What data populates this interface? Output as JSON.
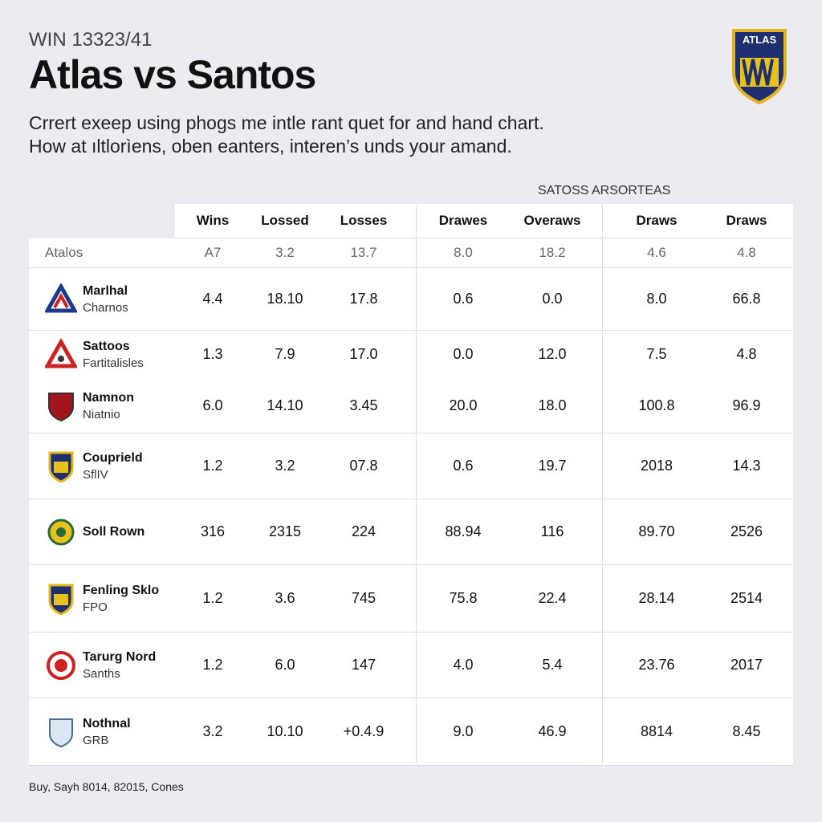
{
  "header": {
    "kicker": "WIN 13323/41",
    "title": "Atlas vs Santos",
    "subtitle": [
      "Crrert exeep using phogs me intle rant quet for and hand chart.",
      "How at ıltlorìens, oben eanters, interen’s unds your amand."
    ],
    "logo_text": "ATLAS"
  },
  "table": {
    "group_label": "SATOSS ARSORTEAS",
    "columns": [
      "Wins",
      "Lossed",
      "Losses",
      "Drawes",
      "Overaws",
      "Draws",
      "Draws"
    ],
    "summary": {
      "label": "Atalos",
      "cells": [
        "A7",
        "3.2",
        "13.7",
        "8.0",
        "18.2",
        "4.6",
        "4.8"
      ]
    },
    "rows": [
      {
        "name": "Marlhal",
        "sub": "Charnos",
        "cells": [
          "4.4",
          "18.10",
          "17.8",
          "0.6",
          "0.0",
          "8.0",
          "66.8"
        ]
      },
      {
        "name": "Sattoos",
        "sub": "Fartitalisles",
        "cells": [
          "1.3",
          "7.9",
          "17.0",
          "0.0",
          "12.0",
          "7.5",
          "4.8"
        ]
      },
      {
        "name": "Namnon",
        "sub": "Niatnio",
        "cells": [
          "6.0",
          "14.10",
          "3.45",
          "20.0",
          "18.0",
          "100.8",
          "96.9"
        ]
      },
      {
        "name": "Couprield",
        "sub": "SflIV",
        "cells": [
          "1.2",
          "3.2",
          "07.8",
          "0.6",
          "19.7",
          "2018",
          "14.3"
        ]
      },
      {
        "name": "Soll Rown",
        "cells": [
          "316",
          "2315",
          "224",
          "88.94",
          "116",
          "89.70",
          "2526"
        ]
      },
      {
        "name": "Fenling Sklo",
        "sub": "FPO",
        "cells": [
          "1.2",
          "3.6",
          "745",
          "75.8",
          "22.4",
          "28.14",
          "2514"
        ]
      },
      {
        "name": "Tarurg Nord",
        "sub": "Sanths",
        "cells": [
          "1.2",
          "6.0",
          "147",
          "4.0",
          "5.4",
          "23.76",
          "2017"
        ]
      },
      {
        "name": "Nothnal",
        "sub": "GRB",
        "cells": [
          "3.2",
          "10.10",
          "+0.4.9",
          "9.0",
          "46.9",
          "8814",
          "8.45"
        ]
      }
    ]
  },
  "footer": "Buy, Sayh 8014, 82015, Cones"
}
